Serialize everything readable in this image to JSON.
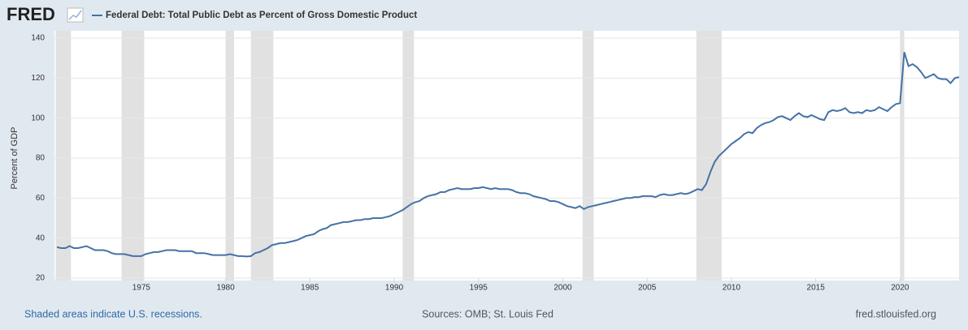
{
  "chart_data": {
    "type": "line",
    "logo": "FRED",
    "y_label": "Percent of GDP",
    "notes": {
      "left": "Shaded areas indicate U.S. recessions.",
      "center": "Sources: OMB; St. Louis Fed",
      "right": "fred.stlouisfed.org"
    },
    "x": [
      1970,
      1970.25,
      1970.5,
      1970.75,
      1971,
      1971.25,
      1971.5,
      1971.75,
      1972,
      1972.25,
      1972.5,
      1972.75,
      1973,
      1973.25,
      1973.5,
      1973.75,
      1974,
      1974.25,
      1974.5,
      1974.75,
      1975,
      1975.25,
      1975.5,
      1975.75,
      1976,
      1976.25,
      1976.5,
      1976.75,
      1977,
      1977.25,
      1977.5,
      1977.75,
      1978,
      1978.25,
      1978.5,
      1978.75,
      1979,
      1979.25,
      1979.5,
      1979.75,
      1980,
      1980.25,
      1980.5,
      1980.75,
      1981,
      1981.25,
      1981.5,
      1981.75,
      1982,
      1982.25,
      1982.5,
      1982.75,
      1983,
      1983.25,
      1983.5,
      1983.75,
      1984,
      1984.25,
      1984.5,
      1984.75,
      1985,
      1985.25,
      1985.5,
      1985.75,
      1986,
      1986.25,
      1986.5,
      1986.75,
      1987,
      1987.25,
      1987.5,
      1987.75,
      1988,
      1988.25,
      1988.5,
      1988.75,
      1989,
      1989.25,
      1989.5,
      1989.75,
      1990,
      1990.25,
      1990.5,
      1990.75,
      1991,
      1991.25,
      1991.5,
      1991.75,
      1992,
      1992.25,
      1992.5,
      1992.75,
      1993,
      1993.25,
      1993.5,
      1993.75,
      1994,
      1994.25,
      1994.5,
      1994.75,
      1995,
      1995.25,
      1995.5,
      1995.75,
      1996,
      1996.25,
      1996.5,
      1996.75,
      1997,
      1997.25,
      1997.5,
      1997.75,
      1998,
      1998.25,
      1998.5,
      1998.75,
      1999,
      1999.25,
      1999.5,
      1999.75,
      2000,
      2000.25,
      2000.5,
      2000.75,
      2001,
      2001.25,
      2001.5,
      2001.75,
      2002,
      2002.25,
      2002.5,
      2002.75,
      2003,
      2003.25,
      2003.5,
      2003.75,
      2004,
      2004.25,
      2004.5,
      2004.75,
      2005,
      2005.25,
      2005.5,
      2005.75,
      2006,
      2006.25,
      2006.5,
      2006.75,
      2007,
      2007.25,
      2007.5,
      2007.75,
      2008,
      2008.25,
      2008.5,
      2008.75,
      2009,
      2009.25,
      2009.5,
      2009.75,
      2010,
      2010.25,
      2010.5,
      2010.75,
      2011,
      2011.25,
      2011.5,
      2011.75,
      2012,
      2012.25,
      2012.5,
      2012.75,
      2013,
      2013.25,
      2013.5,
      2013.75,
      2014,
      2014.25,
      2014.5,
      2014.75,
      2015,
      2015.25,
      2015.5,
      2015.75,
      2016,
      2016.25,
      2016.5,
      2016.75,
      2017,
      2017.25,
      2017.5,
      2017.75,
      2018,
      2018.25,
      2018.5,
      2018.75,
      2019,
      2019.25,
      2019.5,
      2019.75,
      2020,
      2020.25,
      2020.5,
      2020.75,
      2021,
      2021.25,
      2021.5,
      2021.75,
      2022,
      2022.25,
      2022.5,
      2022.75,
      2023,
      2023.25,
      2023.5
    ],
    "series": [
      {
        "name": "Federal Debt: Total Public Debt as Percent of Gross Domestic Product",
        "color": "#4572a7",
        "values": [
          35.5,
          35,
          35,
          36,
          35,
          35,
          35.5,
          36,
          35,
          34,
          34,
          34,
          33.5,
          32.5,
          32,
          32,
          32,
          31.5,
          31,
          31,
          31,
          32,
          32.5,
          33,
          33,
          33.5,
          34,
          34,
          34,
          33.5,
          33.5,
          33.5,
          33.5,
          32.5,
          32.5,
          32.5,
          32,
          31.5,
          31.5,
          31.5,
          31.5,
          32,
          31.5,
          31,
          31,
          30.8,
          31,
          32.5,
          33,
          34,
          35,
          36.5,
          37,
          37.5,
          37.5,
          38,
          38.5,
          39,
          40,
          41,
          41.5,
          42,
          43.5,
          44.5,
          45,
          46.5,
          47,
          47.5,
          48,
          48,
          48.5,
          49,
          49,
          49.5,
          49.5,
          50,
          50,
          50,
          50.5,
          51,
          52,
          53,
          54,
          55.5,
          57,
          58,
          58.5,
          60,
          61,
          61.5,
          62,
          63,
          63,
          64,
          64.5,
          65,
          64.5,
          64.5,
          64.5,
          65,
          65,
          65.5,
          65,
          64.5,
          65,
          64.5,
          64.5,
          64.5,
          64,
          63,
          62.5,
          62.5,
          62,
          61,
          60.5,
          60,
          59.5,
          58.5,
          58.5,
          58,
          57,
          56,
          55.5,
          55,
          56,
          54.5,
          55.5,
          56,
          56.5,
          57,
          57.5,
          58,
          58.5,
          59,
          59.5,
          60,
          60,
          60.5,
          60.5,
          61,
          61,
          61,
          60.5,
          61.5,
          62,
          61.5,
          61.5,
          62,
          62.5,
          62,
          62.5,
          63.5,
          64.5,
          64,
          67,
          73,
          78,
          81,
          83,
          85,
          87,
          88.5,
          90,
          92,
          93,
          92.5,
          95,
          96.5,
          97.5,
          98,
          99,
          100.5,
          101,
          100,
          99,
          101,
          102.5,
          101,
          100.5,
          101.5,
          100.5,
          99.5,
          99,
          103,
          104,
          103.5,
          104,
          105,
          103,
          102.5,
          103,
          102.5,
          104,
          103.5,
          104,
          105.5,
          104.5,
          103.5,
          105.5,
          107,
          107.5,
          133,
          126,
          127,
          125.5,
          123,
          120,
          121,
          122,
          120,
          119.5,
          119.5,
          117.5,
          120,
          120.5
        ]
      }
    ],
    "recessions": [
      [
        1969.92,
        1970.83
      ],
      [
        1973.83,
        1975.17
      ],
      [
        1980.0,
        1980.5
      ],
      [
        1981.5,
        1982.83
      ],
      [
        1990.5,
        1991.17
      ],
      [
        2001.17,
        2001.83
      ],
      [
        2007.92,
        2009.42
      ],
      [
        2020.0,
        2020.25
      ]
    ],
    "xlim": [
      1969.85,
      2023.5
    ],
    "xticks": [
      1975,
      1980,
      1985,
      1990,
      1995,
      2000,
      2005,
      2010,
      2015,
      2020
    ],
    "ylim": [
      20,
      140
    ],
    "yticks": [
      20,
      40,
      60,
      80,
      100,
      120,
      140
    ],
    "grid": true
  }
}
